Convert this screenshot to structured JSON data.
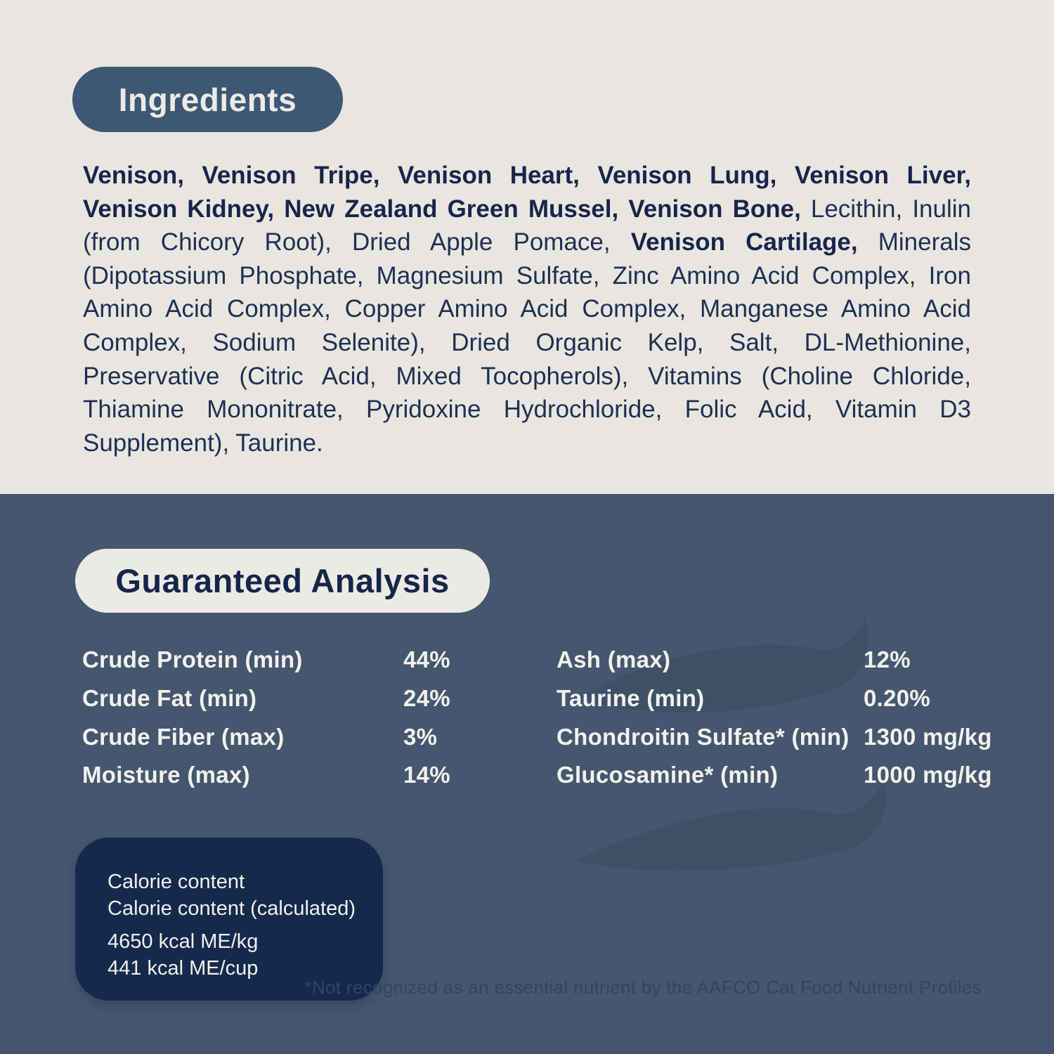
{
  "colors": {
    "cream_bg": "#e9e6e1",
    "slate_blue_bg": "#44576e",
    "pill_blue": "#3d5775",
    "pill_cream": "#eceae5",
    "navy_text": "#16254a",
    "body_text": "#1f2f52",
    "white_text": "#f2f1ed",
    "calorie_box_bg": "#132a4c",
    "footnote_text": "#304565",
    "watermark": "#3d5066"
  },
  "ingredients": {
    "title": "Ingredients",
    "segments": [
      {
        "bold": true,
        "text": "Venison, Venison Tripe, Venison Heart, Venison Lung, Venison Liver, Venison Kidney, New Zealand Green Mussel, Venison Bone,"
      },
      {
        "bold": false,
        "text": " Lecithin, Inulin (from Chicory Root), Dried Apple Pomace, "
      },
      {
        "bold": true,
        "text": "Venison Cartilage,"
      },
      {
        "bold": false,
        "text": " Minerals (Dipotassium Phosphate, Magnesium Sulfate, Zinc Amino Acid Complex, Iron Amino Acid Complex, Copper Amino Acid Complex, Manganese Amino Acid Complex, Sodium Selenite), Dried Organic Kelp, Salt, DL-Methionine, Preservative (Citric Acid, Mixed Tocopherols), Vitamins (Choline Chloride, Thiamine Mononitrate, Pyridoxine Hydrochloride, Folic Acid, Vitamin D3 Supplement), Taurine."
      }
    ]
  },
  "guaranteed_analysis": {
    "title": "Guaranteed Analysis",
    "left_rows": [
      {
        "label": "Crude Protein (min)",
        "value": "44%"
      },
      {
        "label": "Crude Fat (min)",
        "value": "24%"
      },
      {
        "label": "Crude Fiber (max)",
        "value": "3%"
      },
      {
        "label": "Moisture (max)",
        "value": "14%"
      }
    ],
    "right_rows": [
      {
        "label": "Ash (max)",
        "value": "12%"
      },
      {
        "label": "Taurine (min)",
        "value": "0.20%"
      },
      {
        "label": "Chondroitin Sulfate* (min)",
        "value": "1300 mg/kg"
      },
      {
        "label": "Glucosamine* (min)",
        "value": "1000 mg/kg"
      }
    ]
  },
  "calorie_box": {
    "header_lines": [
      "Calorie content",
      "Calorie content (calculated)"
    ],
    "value_lines": [
      "4650 kcal ME/kg",
      "441 kcal ME/cup"
    ]
  },
  "footnote": "*Not recognized as an essential nutrient by the AAFCO Cat Food Nutrient Profiles"
}
